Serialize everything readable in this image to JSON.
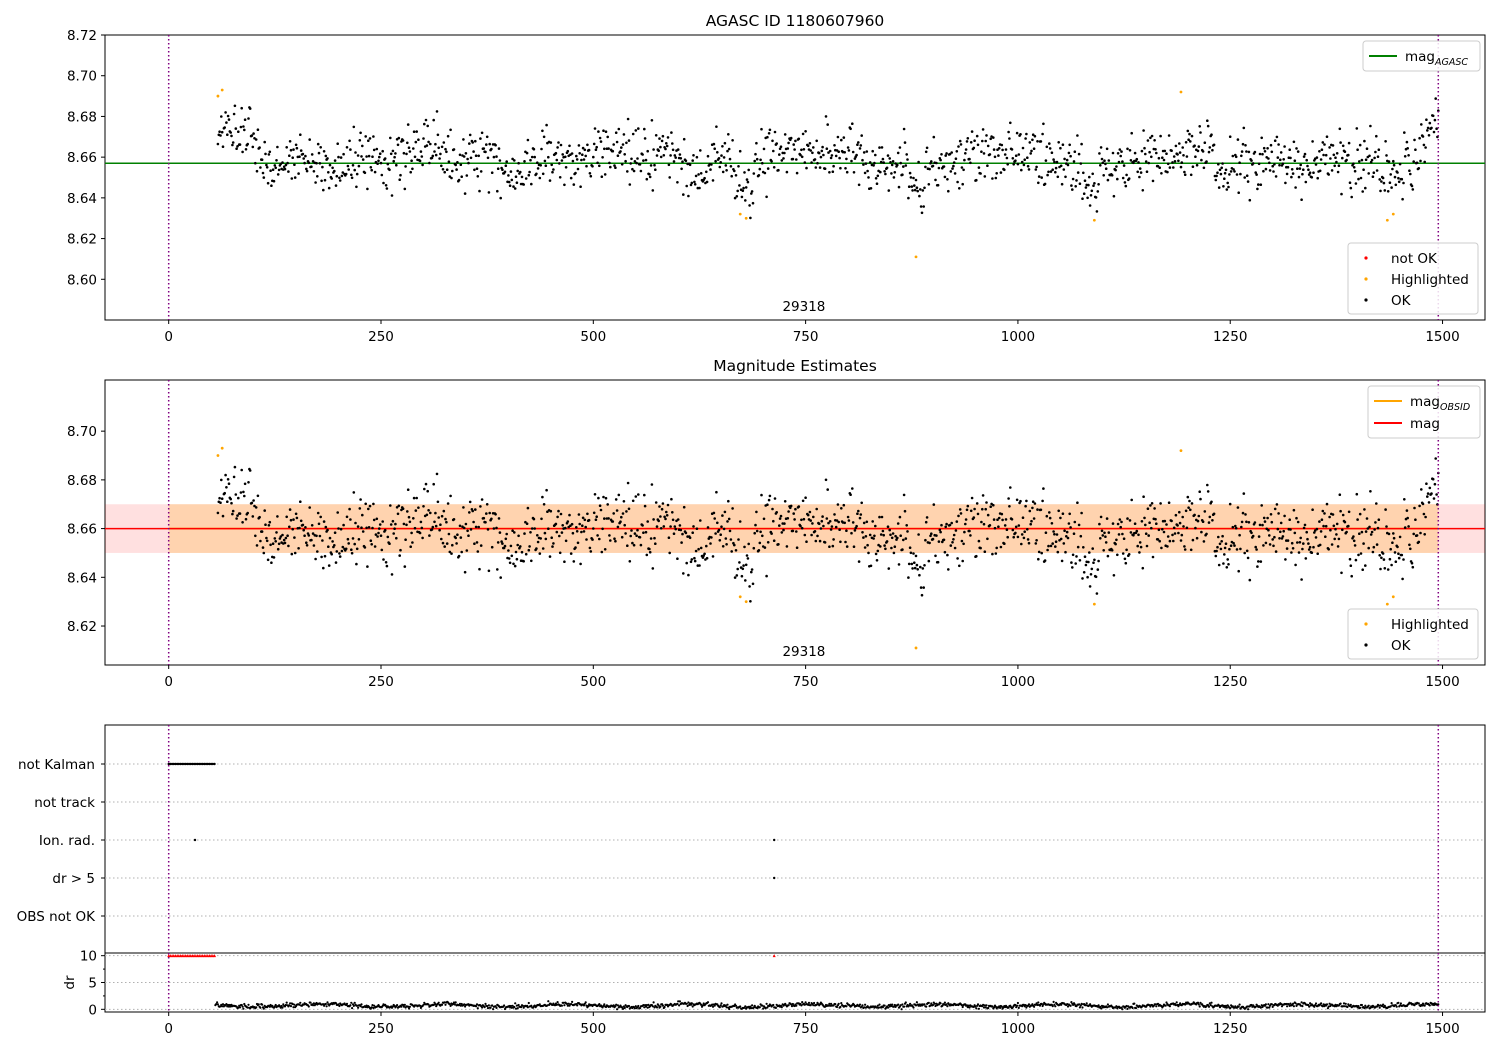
{
  "chart_data": [
    {
      "type": "scatter",
      "title": "AGASC ID 1180607960",
      "xlim": [
        -75,
        1550
      ],
      "ylim": [
        8.58,
        8.72
      ],
      "xticks": [
        "0",
        "250",
        "500",
        "750",
        "1000",
        "1250",
        "1500"
      ],
      "yticks": [
        "8.60",
        "8.62",
        "8.64",
        "8.66",
        "8.68",
        "8.70",
        "8.72"
      ],
      "obsid_label": "29318",
      "obsid_boundaries": [
        0,
        1495
      ],
      "mag_agasc": 8.657,
      "legend_lines": [
        {
          "label": "mag",
          "sub": "AGASC",
          "color": "#008000"
        }
      ],
      "legend_points": [
        {
          "label": "not OK",
          "color": "#ff0000"
        },
        {
          "label": "Highlighted",
          "color": "#ffa500"
        },
        {
          "label": "OK",
          "color": "#000000"
        }
      ],
      "series": [
        {
          "name": "OK",
          "color": "#000000",
          "x_range": [
            58,
            1495
          ],
          "n_points": 1438,
          "mean": 8.659,
          "spread": 0.009
        },
        {
          "name": "Highlighted",
          "color": "#ffa500",
          "x": [
            58,
            63,
            673,
            680,
            880,
            1090,
            1192,
            1435,
            1442
          ],
          "y": [
            8.69,
            8.693,
            8.632,
            8.63,
            8.611,
            8.629,
            8.692,
            8.629,
            8.632
          ]
        }
      ]
    },
    {
      "type": "scatter",
      "title": "Magnitude Estimates",
      "xlim": [
        -75,
        1550
      ],
      "ylim": [
        8.604,
        8.721
      ],
      "xticks": [
        "0",
        "250",
        "500",
        "750",
        "1000",
        "1250",
        "1500"
      ],
      "yticks": [
        "8.62",
        "8.64",
        "8.66",
        "8.68",
        "8.70"
      ],
      "obsid_label": "29318",
      "obsid_boundaries": [
        0,
        1495
      ],
      "mag": 8.66,
      "mag_band": [
        8.65,
        8.67
      ],
      "mag_obsid": 8.66,
      "mag_obsid_band": [
        8.65,
        8.67
      ],
      "legend_lines": [
        {
          "label": "mag",
          "sub": "OBSID",
          "color": "#ffa500"
        },
        {
          "label": "mag",
          "sub": "",
          "color": "#ff0000"
        }
      ],
      "legend_points": [
        {
          "label": "Highlighted",
          "color": "#ffa500"
        },
        {
          "label": "OK",
          "color": "#000000"
        }
      ],
      "series": [
        {
          "name": "OK",
          "color": "#000000",
          "x_range": [
            58,
            1495
          ],
          "n_points": 1438,
          "mean": 8.659,
          "spread": 0.009
        },
        {
          "name": "Highlighted",
          "color": "#ffa500",
          "x": [
            58,
            63,
            673,
            680,
            880,
            1090,
            1192,
            1435,
            1442
          ],
          "y": [
            8.69,
            8.693,
            8.632,
            8.63,
            8.611,
            8.629,
            8.692,
            8.629,
            8.632
          ]
        }
      ]
    },
    {
      "type": "scatter",
      "title": "",
      "xlim": [
        -75,
        1550
      ],
      "flag_categories": [
        "not Kalman",
        "not track",
        "Ion. rad.",
        "dr > 5",
        "OBS not OK"
      ],
      "flags": [
        {
          "category": "not Kalman",
          "x_range": [
            0,
            54
          ],
          "step": 2
        },
        {
          "category": "Ion. rad.",
          "x": [
            31,
            713
          ]
        },
        {
          "category": "dr > 5",
          "x": [
            713
          ]
        }
      ],
      "obsid_boundaries": [
        0,
        1495
      ]
    },
    {
      "type": "scatter",
      "title": "",
      "ylabel": "dr",
      "xlim": [
        -75,
        1550
      ],
      "ylim": [
        -0.5,
        10.5
      ],
      "xticks": [
        "0",
        "250",
        "500",
        "750",
        "1000",
        "1250",
        "1500"
      ],
      "yticks": [
        "0",
        "5",
        "10"
      ],
      "dr_capped": {
        "value": 10,
        "color": "#ff0000",
        "x_range": [
          0,
          54
        ],
        "step": 2,
        "extra_x": [
          713
        ]
      },
      "dr_series": {
        "color": "#000000",
        "x_range": [
          55,
          1495
        ],
        "mean": 0.7,
        "spread": 0.35
      },
      "obsid_boundaries": [
        0,
        1495
      ]
    }
  ]
}
